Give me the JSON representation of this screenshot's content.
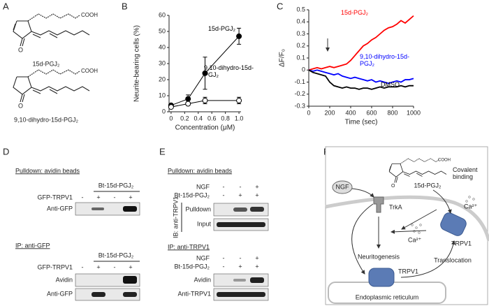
{
  "panel_labels": [
    "A",
    "B",
    "C",
    "D",
    "E",
    "F"
  ],
  "panel_a": {
    "compounds": [
      {
        "label": "15d-PGJ₂",
        "acid": "COOH",
        "oxo": "O"
      },
      {
        "label": "9,10-dihydro-15d-PGJ₂",
        "acid": "COOH",
        "oxo": "O"
      }
    ]
  },
  "chart_data": [
    {
      "type": "line",
      "xlabel": "Concentration (μM)",
      "ylabel": "Neurite-bearing cells (%)",
      "x": [
        0,
        0.25,
        0.5,
        1
      ],
      "xlim": [
        -0.03,
        1.03
      ],
      "xticks": [
        0,
        0.2,
        0.4,
        0.6,
        0.8,
        {
          "value": 1,
          "label": "1.0"
        }
      ],
      "ylim": [
        0,
        60
      ],
      "yticks": [
        0,
        10,
        20,
        30,
        40,
        50,
        60
      ],
      "series": [
        {
          "name": "15d-PGJ₂",
          "color": "#000000",
          "marker": "filled",
          "values": [
            4,
            8,
            24,
            47
          ],
          "errors": [
            1,
            2.5,
            10,
            5
          ]
        },
        {
          "name": "9,10-dihydro-15d-PGJ₂",
          "color": "#000000",
          "marker": "open",
          "values": [
            3,
            5,
            7,
            7
          ],
          "errors": [
            1,
            1,
            2,
            2
          ]
        }
      ]
    },
    {
      "type": "line",
      "xlabel": "Time (sec)",
      "ylabel": "ΔF/F₀",
      "x": [
        0,
        40,
        80,
        120,
        160,
        200,
        240,
        280,
        320,
        360,
        400,
        440,
        480,
        520,
        560,
        600,
        640,
        680,
        720,
        760,
        800,
        840,
        880,
        920,
        960,
        1000
      ],
      "xlim": [
        0,
        1000
      ],
      "xticks": [
        0,
        200,
        400,
        600,
        800,
        1000
      ],
      "ylim": [
        -0.3,
        0.5
      ],
      "yticks": [
        -0.3,
        -0.2,
        -0.1,
        0,
        0.1,
        0.2,
        0.3,
        0.4,
        0.5
      ],
      "series": [
        {
          "name": "15d-PGJ₂",
          "color": "#ff0000",
          "values": [
            0,
            0.01,
            0.02,
            0.01,
            0.02,
            0.03,
            0.02,
            0.03,
            0.04,
            0.05,
            0.08,
            0.12,
            0.16,
            0.2,
            0.22,
            0.25,
            0.27,
            0.3,
            0.33,
            0.35,
            0.36,
            0.38,
            0.41,
            0.39,
            0.42,
            0.45
          ]
        },
        {
          "name": "9,10-dihydro-15d-PGJ₂",
          "color": "#0000ff",
          "values": [
            0,
            -0.01,
            0,
            -0.01,
            -0.02,
            -0.03,
            -0.04,
            -0.03,
            -0.05,
            -0.06,
            -0.07,
            -0.06,
            -0.07,
            -0.08,
            -0.09,
            -0.08,
            -0.1,
            -0.09,
            -0.1,
            -0.11,
            -0.1,
            -0.09,
            -0.1,
            -0.08,
            -0.08,
            -0.07
          ]
        },
        {
          "name": "DMSO",
          "color": "#000000",
          "values": [
            0,
            -0.02,
            -0.03,
            -0.04,
            -0.05,
            -0.1,
            -0.13,
            -0.14,
            -0.15,
            -0.14,
            -0.15,
            -0.15,
            -0.16,
            -0.15,
            -0.15,
            -0.16,
            -0.15,
            -0.14,
            -0.15,
            -0.14,
            -0.14,
            -0.14,
            -0.13,
            -0.14,
            -0.13,
            -0.13
          ]
        }
      ]
    }
  ],
  "panel_d": {
    "pulldown": {
      "title": "Pulldown: avidin beads",
      "treatment": "Bt-15d-PGJ₂",
      "row_label": "GFP-TRPV1",
      "signs": [
        "-",
        "+",
        "-",
        "+"
      ],
      "blots": [
        "Anti-GFP"
      ]
    },
    "ip": {
      "title": "IP: anti-GFP",
      "treatment": "Bt-15d-PGJ₂",
      "row_label": "GFP-TRPV1",
      "signs": [
        "-",
        "+",
        "-",
        "+"
      ],
      "blots": [
        "Avidin",
        "Anti-GFP"
      ]
    }
  },
  "panel_e": {
    "pulldown": {
      "title": "Pulldown: avidin beads",
      "rows": [
        {
          "label": "NGF",
          "signs": [
            "-",
            "-",
            "+"
          ]
        },
        {
          "label": "Bt-15d-PGJ₂",
          "signs": [
            "-",
            "+",
            "+"
          ]
        }
      ],
      "ib": "IB: anti-TRPV1",
      "blots": [
        "Pulldown",
        "Input"
      ]
    },
    "ip": {
      "title": "IP: anti-TRPV1",
      "rows": [
        {
          "label": "NGF",
          "signs": [
            "-",
            "-",
            "+"
          ]
        },
        {
          "label": "Bt-15d-PGJ₂",
          "signs": [
            "-",
            "+",
            "+"
          ]
        }
      ],
      "blots": [
        "Avidin",
        "Anti-TRPV1"
      ]
    }
  },
  "panel_f": {
    "ngf": "NGF",
    "trka": "TrkA",
    "ligand": "15d-PGJ₂",
    "ligand_acid": "COOH",
    "ligand_oxo": "O",
    "covalent": "Covalent binding",
    "calcium": [
      "Ca²⁺",
      "Ca²⁺"
    ],
    "trpv1": [
      "TRPV1",
      "TRPV1"
    ],
    "neuritogenesis": "Neuritogenesis",
    "translocation": "Translocation",
    "er": "Endoplasmic reticulum"
  }
}
